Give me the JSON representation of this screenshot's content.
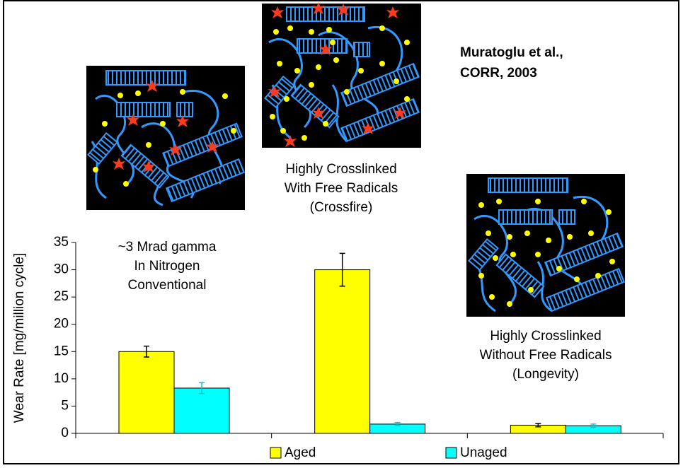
{
  "chart_data": {
    "type": "bar",
    "categories": [
      null,
      null,
      null
    ],
    "series": [
      {
        "name": "Aged",
        "color": "#ffff00",
        "error_color": "#000000",
        "values": [
          15,
          30,
          1.5
        ],
        "errors": [
          1,
          3,
          0.3
        ]
      },
      {
        "name": "Unaged",
        "color": "#00ffff",
        "error_color": "#00cccc",
        "values": [
          8.3,
          1.7,
          1.4
        ],
        "errors": [
          1,
          0.3,
          0.3
        ]
      }
    ],
    "ylim": [
      0,
      35
    ],
    "yticks": [
      0,
      5,
      10,
      15,
      20,
      25,
      30,
      35
    ],
    "ylabel": "Wear Rate [mg/million cycle]",
    "legend": "bottom",
    "annotations": [
      "~3 Mrad gamma",
      "In Nitrogen",
      "Conventional",
      "Highly Crosslinked",
      "With Free Radicals",
      "(Crossfire)",
      "Highly Crosslinked",
      "Without Free Radicals",
      "(Longevity)",
      "Muratoglu et al.,",
      "CORR, 2003"
    ]
  }
}
